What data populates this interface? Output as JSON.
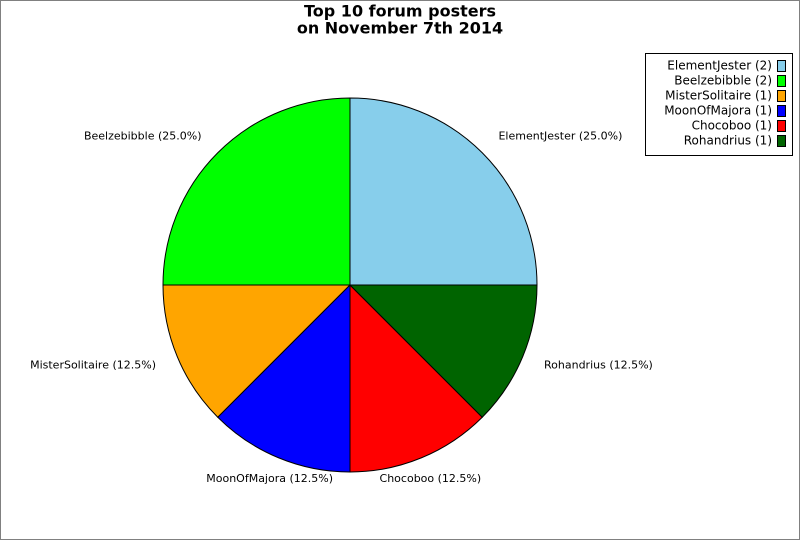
{
  "chart_data": {
    "type": "pie",
    "title": "Top 10 forum posters",
    "subtitle": "on November 7th 2014",
    "categories": [
      "ElementJester (2)",
      "Beelzebibble (2)",
      "MisterSolitaire (1)",
      "MoonOfMajora (1)",
      "Chocoboo (1)",
      "Rohandrius (1)"
    ],
    "values": [
      25,
      25,
      12.5,
      12.5,
      12.5,
      12.5
    ],
    "value_labels": [
      "ElementJester (25.0%)",
      "Beelzebibble (25.0%)",
      "MisterSolitaire (12.5%)",
      "MoonOfMajora (12.5%)",
      "Chocoboo (12.5%)",
      "Rohandrius (12.5%)"
    ],
    "colors": [
      "#87ceeb",
      "#00ff00",
      "#ffa500",
      "#0000ff",
      "#ff0000",
      "#006400"
    ],
    "legend": "top-right"
  }
}
